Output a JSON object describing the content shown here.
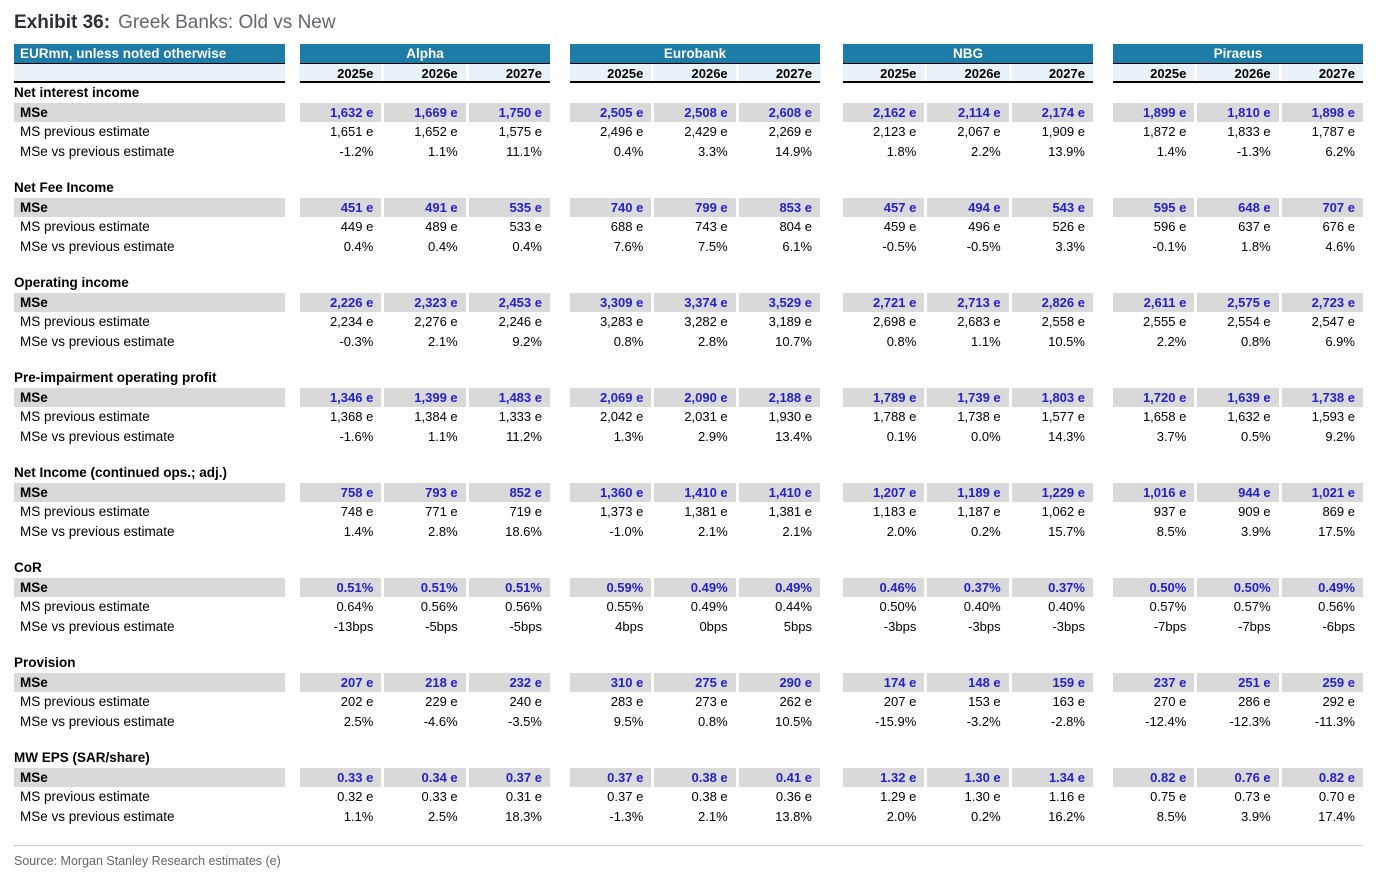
{
  "exhibit": {
    "label": "Exhibit 36:",
    "title": "Greek Banks: Old vs New"
  },
  "colors": {
    "header_teal": "#1E7CA8",
    "year_row_bg": "#E9F2F8",
    "mse_row_bg": "#D9D9D9",
    "mse_value_blue": "#2222CC"
  },
  "table": {
    "corner_header": "EURmn, unless noted otherwise",
    "banks": [
      "Alpha",
      "Eurobank",
      "NBG",
      "Piraeus"
    ],
    "years": [
      "2025e",
      "2026e",
      "2027e"
    ],
    "row_labels": {
      "mse": "MSe",
      "prev": "MS previous estimate",
      "vs": "MSe vs previous estimate"
    },
    "sections": [
      {
        "title": "Net interest income",
        "mse": [
          [
            "1,632 e",
            "1,669 e",
            "1,750 e"
          ],
          [
            "2,505 e",
            "2,508 e",
            "2,608 e"
          ],
          [
            "2,162 e",
            "2,114 e",
            "2,174 e"
          ],
          [
            "1,899 e",
            "1,810 e",
            "1,898 e"
          ]
        ],
        "prev": [
          [
            "1,651 e",
            "1,652 e",
            "1,575 e"
          ],
          [
            "2,496 e",
            "2,429 e",
            "2,269 e"
          ],
          [
            "2,123 e",
            "2,067 e",
            "1,909 e"
          ],
          [
            "1,872 e",
            "1,833 e",
            "1,787 e"
          ]
        ],
        "vs": [
          [
            "-1.2%",
            "1.1%",
            "11.1%"
          ],
          [
            "0.4%",
            "3.3%",
            "14.9%"
          ],
          [
            "1.8%",
            "2.2%",
            "13.9%"
          ],
          [
            "1.4%",
            "-1.3%",
            "6.2%"
          ]
        ]
      },
      {
        "title": "Net Fee Income",
        "mse": [
          [
            "451 e",
            "491 e",
            "535 e"
          ],
          [
            "740 e",
            "799 e",
            "853 e"
          ],
          [
            "457 e",
            "494 e",
            "543 e"
          ],
          [
            "595 e",
            "648 e",
            "707 e"
          ]
        ],
        "prev": [
          [
            "449 e",
            "489 e",
            "533 e"
          ],
          [
            "688 e",
            "743 e",
            "804 e"
          ],
          [
            "459 e",
            "496 e",
            "526 e"
          ],
          [
            "596 e",
            "637 e",
            "676 e"
          ]
        ],
        "vs": [
          [
            "0.4%",
            "0.4%",
            "0.4%"
          ],
          [
            "7.6%",
            "7.5%",
            "6.1%"
          ],
          [
            "-0.5%",
            "-0.5%",
            "3.3%"
          ],
          [
            "-0.1%",
            "1.8%",
            "4.6%"
          ]
        ]
      },
      {
        "title": "Operating income",
        "mse": [
          [
            "2,226 e",
            "2,323 e",
            "2,453 e"
          ],
          [
            "3,309 e",
            "3,374 e",
            "3,529 e"
          ],
          [
            "2,721 e",
            "2,713 e",
            "2,826 e"
          ],
          [
            "2,611 e",
            "2,575 e",
            "2,723 e"
          ]
        ],
        "prev": [
          [
            "2,234 e",
            "2,276 e",
            "2,246 e"
          ],
          [
            "3,283 e",
            "3,282 e",
            "3,189 e"
          ],
          [
            "2,698 e",
            "2,683 e",
            "2,558 e"
          ],
          [
            "2,555 e",
            "2,554 e",
            "2,547 e"
          ]
        ],
        "vs": [
          [
            "-0.3%",
            "2.1%",
            "9.2%"
          ],
          [
            "0.8%",
            "2.8%",
            "10.7%"
          ],
          [
            "0.8%",
            "1.1%",
            "10.5%"
          ],
          [
            "2.2%",
            "0.8%",
            "6.9%"
          ]
        ]
      },
      {
        "title": "Pre-impairment operating profit",
        "mse": [
          [
            "1,346 e",
            "1,399 e",
            "1,483 e"
          ],
          [
            "2,069 e",
            "2,090 e",
            "2,188 e"
          ],
          [
            "1,789 e",
            "1,739 e",
            "1,803 e"
          ],
          [
            "1,720 e",
            "1,639 e",
            "1,738 e"
          ]
        ],
        "prev": [
          [
            "1,368 e",
            "1,384 e",
            "1,333 e"
          ],
          [
            "2,042 e",
            "2,031 e",
            "1,930 e"
          ],
          [
            "1,788 e",
            "1,738 e",
            "1,577 e"
          ],
          [
            "1,658 e",
            "1,632 e",
            "1,593 e"
          ]
        ],
        "vs": [
          [
            "-1.6%",
            "1.1%",
            "11.2%"
          ],
          [
            "1.3%",
            "2.9%",
            "13.4%"
          ],
          [
            "0.1%",
            "0.0%",
            "14.3%"
          ],
          [
            "3.7%",
            "0.5%",
            "9.2%"
          ]
        ]
      },
      {
        "title": "Net Income (continued ops.; adj.)",
        "mse": [
          [
            "758 e",
            "793 e",
            "852 e"
          ],
          [
            "1,360 e",
            "1,410 e",
            "1,410 e"
          ],
          [
            "1,207 e",
            "1,189 e",
            "1,229 e"
          ],
          [
            "1,016 e",
            "944 e",
            "1,021 e"
          ]
        ],
        "prev": [
          [
            "748 e",
            "771 e",
            "719 e"
          ],
          [
            "1,373 e",
            "1,381 e",
            "1,381 e"
          ],
          [
            "1,183 e",
            "1,187 e",
            "1,062 e"
          ],
          [
            "937 e",
            "909 e",
            "869 e"
          ]
        ],
        "vs": [
          [
            "1.4%",
            "2.8%",
            "18.6%"
          ],
          [
            "-1.0%",
            "2.1%",
            "2.1%"
          ],
          [
            "2.0%",
            "0.2%",
            "15.7%"
          ],
          [
            "8.5%",
            "3.9%",
            "17.5%"
          ]
        ]
      },
      {
        "title": "CoR",
        "mse": [
          [
            "0.51%",
            "0.51%",
            "0.51%"
          ],
          [
            "0.59%",
            "0.49%",
            "0.49%"
          ],
          [
            "0.46%",
            "0.37%",
            "0.37%"
          ],
          [
            "0.50%",
            "0.50%",
            "0.49%"
          ]
        ],
        "prev": [
          [
            "0.64%",
            "0.56%",
            "0.56%"
          ],
          [
            "0.55%",
            "0.49%",
            "0.44%"
          ],
          [
            "0.50%",
            "0.40%",
            "0.40%"
          ],
          [
            "0.57%",
            "0.57%",
            "0.56%"
          ]
        ],
        "vs": [
          [
            "-13bps",
            "-5bps",
            "-5bps"
          ],
          [
            "4bps",
            "0bps",
            "5bps"
          ],
          [
            "-3bps",
            "-3bps",
            "-3bps"
          ],
          [
            "-7bps",
            "-7bps",
            "-6bps"
          ]
        ]
      },
      {
        "title": "Provision",
        "mse": [
          [
            "207 e",
            "218 e",
            "232 e"
          ],
          [
            "310 e",
            "275 e",
            "290 e"
          ],
          [
            "174 e",
            "148 e",
            "159 e"
          ],
          [
            "237 e",
            "251 e",
            "259 e"
          ]
        ],
        "prev": [
          [
            "202 e",
            "229 e",
            "240 e"
          ],
          [
            "283 e",
            "273 e",
            "262 e"
          ],
          [
            "207 e",
            "153 e",
            "163 e"
          ],
          [
            "270 e",
            "286 e",
            "292 e"
          ]
        ],
        "vs": [
          [
            "2.5%",
            "-4.6%",
            "-3.5%"
          ],
          [
            "9.5%",
            "0.8%",
            "10.5%"
          ],
          [
            "-15.9%",
            "-3.2%",
            "-2.8%"
          ],
          [
            "-12.4%",
            "-12.3%",
            "-11.3%"
          ]
        ]
      },
      {
        "title": "MW EPS (SAR/share)",
        "mse": [
          [
            "0.33 e",
            "0.34 e",
            "0.37 e"
          ],
          [
            "0.37 e",
            "0.38 e",
            "0.41 e"
          ],
          [
            "1.32 e",
            "1.30 e",
            "1.34 e"
          ],
          [
            "0.82 e",
            "0.76 e",
            "0.82 e"
          ]
        ],
        "prev": [
          [
            "0.32 e",
            "0.33 e",
            "0.31 e"
          ],
          [
            "0.37 e",
            "0.38 e",
            "0.36 e"
          ],
          [
            "1.29 e",
            "1.30 e",
            "1.16 e"
          ],
          [
            "0.75 e",
            "0.73 e",
            "0.70 e"
          ]
        ],
        "vs": [
          [
            "1.1%",
            "2.5%",
            "18.3%"
          ],
          [
            "-1.3%",
            "2.1%",
            "13.8%"
          ],
          [
            "2.0%",
            "0.2%",
            "16.2%"
          ],
          [
            "8.5%",
            "3.9%",
            "17.4%"
          ]
        ]
      }
    ]
  },
  "footer": {
    "source": "Source: Morgan Stanley Research estimates (e)"
  }
}
